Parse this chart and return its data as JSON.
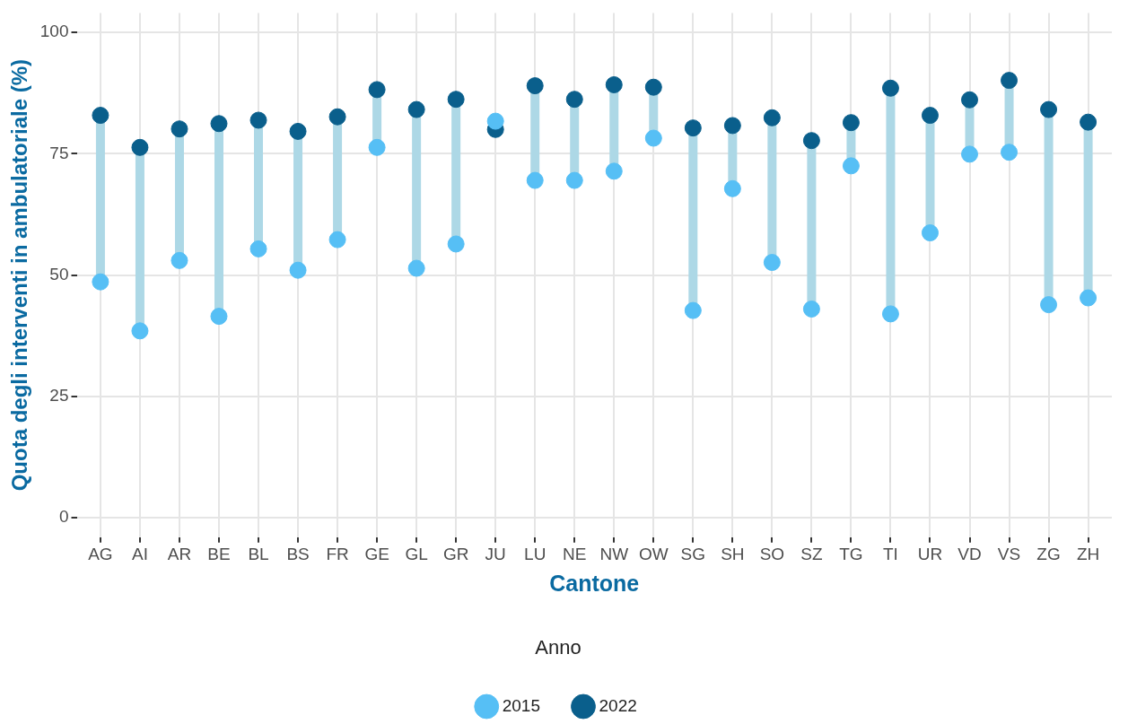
{
  "chart_data": {
    "type": "scatter",
    "xlabel": "Cantone",
    "ylabel": "Quota degli interventi in ambulatoriale (%)",
    "legend_title": "Anno",
    "legend": "bottom",
    "grid": true,
    "marker": "circle",
    "categories": [
      "AG",
      "AI",
      "AR",
      "BE",
      "BL",
      "BS",
      "FR",
      "GE",
      "GL",
      "GR",
      "JU",
      "LU",
      "NE",
      "NW",
      "OW",
      "SG",
      "SH",
      "SO",
      "SZ",
      "TG",
      "TI",
      "UR",
      "VD",
      "VS",
      "ZG",
      "ZH"
    ],
    "ylim": [
      -4,
      104
    ],
    "yticks": [
      0,
      25,
      50,
      75,
      100
    ],
    "series": [
      {
        "name": "2015",
        "color": "#56bff5",
        "values": [
          48.6,
          38.5,
          53.0,
          41.5,
          55.4,
          51.0,
          57.3,
          76.3,
          51.4,
          56.4,
          81.7,
          69.5,
          69.5,
          71.4,
          78.2,
          42.7,
          67.8,
          52.6,
          43.0,
          72.5,
          42.0,
          58.7,
          74.9,
          75.3,
          43.9,
          45.3
        ]
      },
      {
        "name": "2022",
        "color": "#0a5f8c",
        "values": [
          82.9,
          76.3,
          80.1,
          81.2,
          81.9,
          79.6,
          82.6,
          88.2,
          84.1,
          86.2,
          80.0,
          89.0,
          86.2,
          89.2,
          88.7,
          80.3,
          80.8,
          82.4,
          77.7,
          81.4,
          88.5,
          82.9,
          86.1,
          90.1,
          84.1,
          81.5
        ]
      }
    ]
  }
}
